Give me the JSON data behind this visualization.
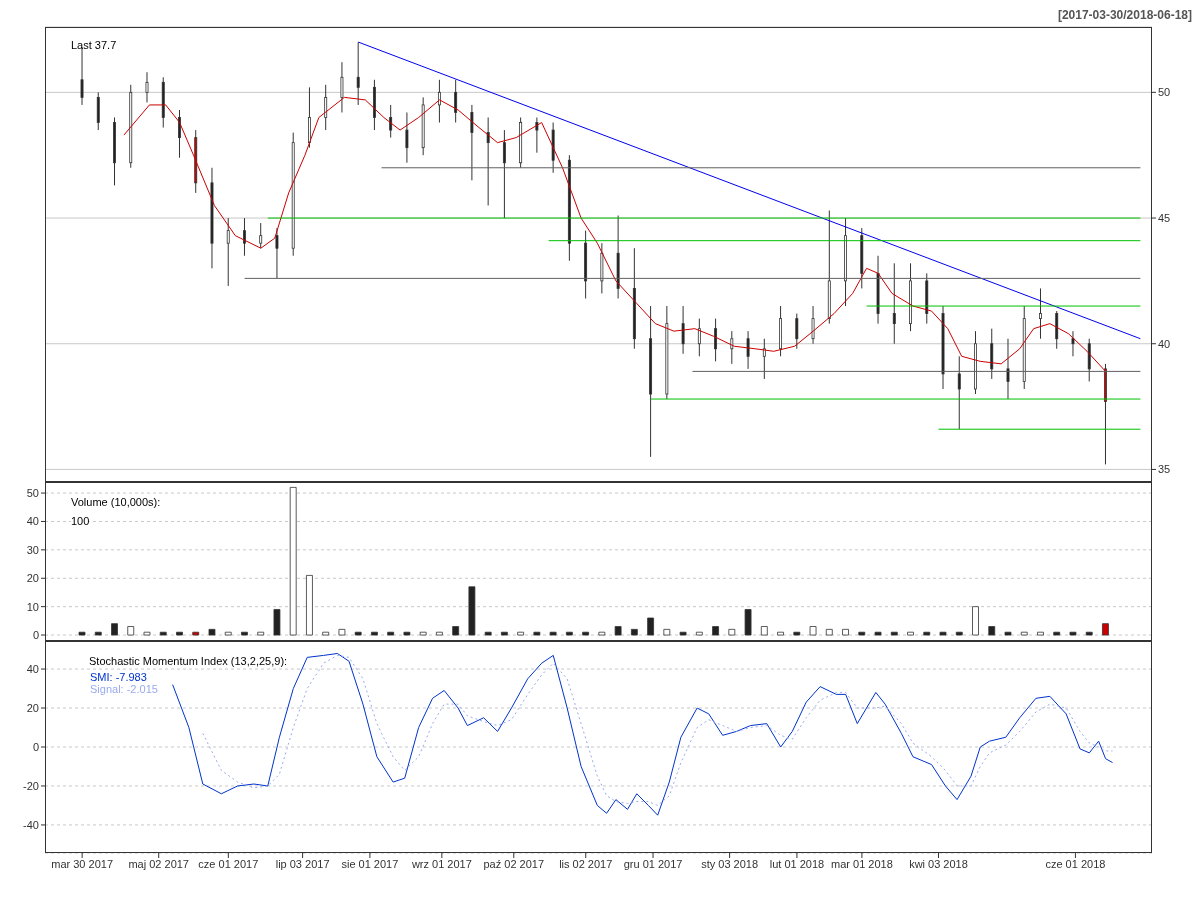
{
  "chart_data": [
    {
      "type": "candlestick",
      "annotations": [
        "Last 37.7",
        "[2017-03-30/2018-06-18]"
      ],
      "x": [
        "2017-03-30",
        "2017-04-06",
        "2017-04-13",
        "2017-04-20",
        "2017-04-27",
        "2017-05-04",
        "2017-05-11",
        "2017-05-18",
        "2017-05-25",
        "2017-06-01",
        "2017-06-08",
        "2017-06-15",
        "2017-06-22",
        "2017-06-29",
        "2017-07-06",
        "2017-07-13",
        "2017-07-20",
        "2017-07-27",
        "2017-08-03",
        "2017-08-10",
        "2017-08-17",
        "2017-08-24",
        "2017-08-31",
        "2017-09-07",
        "2017-09-14",
        "2017-09-21",
        "2017-09-28",
        "2017-10-05",
        "2017-10-12",
        "2017-10-19",
        "2017-10-26",
        "2017-11-02",
        "2017-11-09",
        "2017-11-16",
        "2017-11-23",
        "2017-11-30",
        "2017-12-07",
        "2017-12-14",
        "2017-12-21",
        "2017-12-28",
        "2018-01-04",
        "2018-01-11",
        "2018-01-18",
        "2018-01-25",
        "2018-02-01",
        "2018-02-08",
        "2018-02-15",
        "2018-02-22",
        "2018-03-01",
        "2018-03-08",
        "2018-03-15",
        "2018-03-22",
        "2018-03-29",
        "2018-04-05",
        "2018-04-12",
        "2018-04-19",
        "2018-04-26",
        "2018-05-03",
        "2018-05-10",
        "2018-05-17",
        "2018-05-24",
        "2018-05-31",
        "2018-06-07",
        "2018-06-14"
      ],
      "ohlc": [
        [
          50.5,
          51.8,
          49.5,
          49.8
        ],
        [
          49.8,
          50,
          48.5,
          48.8
        ],
        [
          48.8,
          49,
          46.3,
          47.2
        ],
        [
          47.2,
          50.3,
          47,
          50
        ],
        [
          50,
          50.8,
          49.6,
          50.4
        ],
        [
          50.4,
          50.6,
          48.6,
          49
        ],
        [
          49,
          49.3,
          47.4,
          48.2
        ],
        [
          48.2,
          48.5,
          46,
          46.4
        ],
        [
          46.4,
          47,
          43,
          44
        ],
        [
          44,
          45,
          42.3,
          44.5
        ],
        [
          44.5,
          45,
          43.5,
          44
        ],
        [
          44,
          44.8,
          43.8,
          44.3
        ],
        [
          44.3,
          44.6,
          42.6,
          43.8
        ],
        [
          43.8,
          48.4,
          43.5,
          48
        ],
        [
          48,
          50.2,
          47.8,
          49
        ],
        [
          49,
          50.3,
          48.5,
          49.8
        ],
        [
          49.8,
          51.2,
          49.2,
          50.6
        ],
        [
          50.6,
          52,
          49.5,
          50.2
        ],
        [
          50.2,
          50.5,
          48.5,
          49
        ],
        [
          49,
          49.5,
          48.2,
          48.5
        ],
        [
          48.5,
          49.2,
          47.2,
          47.8
        ],
        [
          47.8,
          49.8,
          47.5,
          49.5
        ],
        [
          49.5,
          50.5,
          48.8,
          50
        ],
        [
          50,
          50.5,
          48.8,
          49.2
        ],
        [
          49.2,
          49.5,
          46.5,
          48.4
        ],
        [
          48.4,
          49,
          45.5,
          48
        ],
        [
          48,
          48.5,
          45,
          47.2
        ],
        [
          47.2,
          49,
          47,
          48.8
        ],
        [
          48.8,
          49,
          47.6,
          48.5
        ],
        [
          48.5,
          48.8,
          46.8,
          47.3
        ],
        [
          47.3,
          47.5,
          43.3,
          44
        ],
        [
          44,
          44.5,
          41.8,
          42.5
        ],
        [
          42.5,
          44,
          42,
          43.6
        ],
        [
          43.6,
          45.1,
          41.8,
          42.2
        ],
        [
          42.2,
          43.8,
          39.8,
          40.2
        ],
        [
          40.2,
          41.5,
          35.5,
          38
        ],
        [
          38,
          41.5,
          37.8,
          40.8
        ],
        [
          40.8,
          41.5,
          39.6,
          40
        ],
        [
          40,
          41,
          39.5,
          40.6
        ],
        [
          40.6,
          41,
          39.3,
          39.8
        ],
        [
          39.8,
          40.5,
          39.2,
          40.2
        ],
        [
          40.2,
          40.5,
          39,
          39.5
        ],
        [
          39.5,
          40.2,
          38.6,
          39.8
        ],
        [
          39.8,
          41.5,
          39.5,
          41
        ],
        [
          41,
          41.2,
          39.8,
          40.2
        ],
        [
          40.2,
          41.5,
          40,
          41
        ],
        [
          41,
          45.3,
          40.8,
          42.5
        ],
        [
          42.5,
          45,
          41.5,
          44.3
        ],
        [
          44.3,
          44.6,
          42.2,
          42.8
        ],
        [
          42.8,
          43.5,
          40.8,
          41.2
        ],
        [
          41.2,
          43.2,
          40,
          40.8
        ],
        [
          40.8,
          43.2,
          40.5,
          42.5
        ],
        [
          42.5,
          42.8,
          40.8,
          41.2
        ],
        [
          41.2,
          41.5,
          38.2,
          38.8
        ],
        [
          38.8,
          39.5,
          36.6,
          38.2
        ],
        [
          38.2,
          40.5,
          38,
          40
        ],
        [
          40,
          40.6,
          38.6,
          39
        ],
        [
          39,
          40.2,
          37.8,
          38.5
        ],
        [
          38.5,
          41.5,
          38.2,
          41
        ],
        [
          41,
          42.2,
          40.2,
          41.2
        ],
        [
          41.2,
          41.3,
          39.8,
          40.2
        ],
        [
          40.2,
          40.5,
          39.5,
          40
        ],
        [
          40,
          40.2,
          38.5,
          39
        ],
        [
          39,
          39.2,
          35.2,
          37.7
        ]
      ],
      "colors": [
        "#222222",
        "#222222",
        "#222222",
        "#ffffff",
        "#ffffff",
        "#222222",
        "#222222",
        "#cc0000",
        "#222222",
        "#ffffff",
        "#222222",
        "#ffffff",
        "#222222",
        "#ffffff",
        "#ffffff",
        "#ffffff",
        "#ffffff",
        "#222222",
        "#222222",
        "#222222",
        "#222222",
        "#ffffff",
        "#ffffff",
        "#222222",
        "#222222",
        "#222222",
        "#222222",
        "#ffffff",
        "#222222",
        "#222222",
        "#222222",
        "#222222",
        "#ffffff",
        "#222222",
        "#222222",
        "#222222",
        "#ffffff",
        "#222222",
        "#ffffff",
        "#222222",
        "#ffffff",
        "#222222",
        "#ffffff",
        "#ffffff",
        "#222222",
        "#ffffff",
        "#ffffff",
        "#ffffff",
        "#222222",
        "#222222",
        "#222222",
        "#ffffff",
        "#222222",
        "#222222",
        "#222222",
        "#ffffff",
        "#222222",
        "#222222",
        "#ffffff",
        "#ffffff",
        "#222222",
        "#222222",
        "#222222",
        "#cc0000"
      ],
      "series": [
        {
          "type": "line",
          "color": "#cc0000",
          "x": [
            "2017-04-17",
            "2017-04-28",
            "2017-05-05",
            "2017-05-11",
            "2017-05-17",
            "2017-05-26",
            "2017-06-04",
            "2017-06-15",
            "2017-06-21",
            "2017-06-27",
            "2017-07-04",
            "2017-07-10",
            "2017-07-21",
            "2017-07-30",
            "2017-08-07",
            "2017-08-14",
            "2017-08-22",
            "2017-08-31",
            "2017-09-08",
            "2017-09-17",
            "2017-09-25",
            "2017-10-03",
            "2017-10-14",
            "2017-10-23",
            "2017-10-31",
            "2017-11-07",
            "2017-11-15",
            "2017-11-24",
            "2017-12-02",
            "2017-12-10",
            "2017-12-19",
            "2017-12-27",
            "2018-01-05",
            "2018-01-14",
            "2018-01-22",
            "2018-01-31",
            "2018-02-08",
            "2018-02-17",
            "2018-02-25",
            "2018-03-03",
            "2018-03-08",
            "2018-03-14",
            "2018-03-23",
            "2018-03-31",
            "2018-04-07",
            "2018-04-13",
            "2018-04-21",
            "2018-04-30",
            "2018-05-08",
            "2018-05-14",
            "2018-05-21",
            "2018-05-29",
            "2018-06-06",
            "2018-06-14"
          ],
          "values": [
            48.3,
            49.5,
            49.5,
            48.8,
            47.5,
            45.5,
            44.3,
            43.8,
            44.2,
            46,
            47.5,
            49,
            49.8,
            49.7,
            49,
            48.5,
            49,
            49.7,
            49.3,
            48.6,
            48,
            48.2,
            48.8,
            47,
            45,
            44,
            42.5,
            41.6,
            40.8,
            40.5,
            40.6,
            40.3,
            39.9,
            39.8,
            39.7,
            39.9,
            40.5,
            41.2,
            42,
            43,
            42.8,
            42,
            41.5,
            41.3,
            40.6,
            39.5,
            39.3,
            39.2,
            39.8,
            40.6,
            40.8,
            40.4,
            39.7,
            38.9
          ]
        },
        {
          "type": "line",
          "color": "#0000ee",
          "x": [
            "2017-07-27",
            "2018-06-29"
          ],
          "values": [
            52,
            40.2
          ]
        },
        {
          "type": "line",
          "color": "#606060",
          "x": [
            "2017-08-06",
            "2018-06-29"
          ],
          "values": [
            47,
            47
          ]
        },
        {
          "type": "line",
          "color": "#00c000",
          "x": [
            "2017-06-18",
            "2018-06-29"
          ],
          "values": [
            45,
            45
          ]
        },
        {
          "type": "line",
          "color": "#00c000",
          "x": [
            "2017-10-17",
            "2018-06-29"
          ],
          "values": [
            44.1,
            44.1
          ]
        },
        {
          "type": "line",
          "color": "#606060",
          "x": [
            "2017-06-08",
            "2018-06-29"
          ],
          "values": [
            42.6,
            42.6
          ]
        },
        {
          "type": "line",
          "color": "#00c000",
          "x": [
            "2018-03-03",
            "2018-06-29"
          ],
          "values": [
            41.5,
            41.5
          ]
        },
        {
          "type": "line",
          "color": "#606060",
          "x": [
            "2017-12-18",
            "2018-06-29"
          ],
          "values": [
            38.9,
            38.9
          ]
        },
        {
          "type": "line",
          "color": "#00c000",
          "x": [
            "2017-11-30",
            "2018-06-29"
          ],
          "values": [
            37.8,
            37.8
          ]
        },
        {
          "type": "line",
          "color": "#00c000",
          "x": [
            "2018-04-03",
            "2018-06-29"
          ],
          "values": [
            36.6,
            36.6
          ]
        }
      ],
      "xlim": [
        "2017-03-14",
        "2018-07-04"
      ],
      "ylim": [
        34.5,
        52.6
      ],
      "yticks": [
        35,
        40,
        45,
        50
      ],
      "grid": "y",
      "tick_labels": "y"
    },
    {
      "type": "bar",
      "annotations": [
        "Volume (10,000s):",
        "100"
      ],
      "x": [
        "2017-03-30",
        "2017-04-06",
        "2017-04-13",
        "2017-04-20",
        "2017-04-27",
        "2017-05-04",
        "2017-05-11",
        "2017-05-18",
        "2017-05-25",
        "2017-06-01",
        "2017-06-08",
        "2017-06-15",
        "2017-06-22",
        "2017-06-29",
        "2017-07-06",
        "2017-07-13",
        "2017-07-20",
        "2017-07-27",
        "2017-08-03",
        "2017-08-10",
        "2017-08-17",
        "2017-08-24",
        "2017-08-31",
        "2017-09-07",
        "2017-09-14",
        "2017-09-21",
        "2017-09-28",
        "2017-10-05",
        "2017-10-12",
        "2017-10-19",
        "2017-10-26",
        "2017-11-02",
        "2017-11-09",
        "2017-11-16",
        "2017-11-23",
        "2017-11-30",
        "2017-12-07",
        "2017-12-14",
        "2017-12-21",
        "2017-12-28",
        "2018-01-04",
        "2018-01-11",
        "2018-01-18",
        "2018-01-25",
        "2018-02-01",
        "2018-02-08",
        "2018-02-15",
        "2018-02-22",
        "2018-03-01",
        "2018-03-08",
        "2018-03-15",
        "2018-03-22",
        "2018-03-29",
        "2018-04-05",
        "2018-04-12",
        "2018-04-19",
        "2018-04-26",
        "2018-05-03",
        "2018-05-10",
        "2018-05-17",
        "2018-05-24",
        "2018-05-31",
        "2018-06-07",
        "2018-06-14"
      ],
      "values": [
        1,
        1,
        4,
        3,
        1,
        1,
        1,
        1,
        2,
        1,
        1,
        1,
        9,
        52,
        21,
        1,
        2,
        1,
        1,
        1,
        1,
        1,
        1,
        3,
        17,
        1,
        1,
        1,
        1,
        1,
        1,
        1,
        1,
        3,
        2,
        6,
        2,
        1,
        1,
        3,
        2,
        9,
        3,
        1,
        1,
        3,
        2,
        2,
        1,
        1,
        1,
        1,
        1,
        1,
        1,
        10,
        3,
        1,
        1,
        1,
        1,
        1,
        1,
        4
      ],
      "colors": [
        "#222222",
        "#222222",
        "#222222",
        "#ffffff",
        "#ffffff",
        "#222222",
        "#222222",
        "#cc0000",
        "#222222",
        "#ffffff",
        "#222222",
        "#ffffff",
        "#222222",
        "#ffffff",
        "#ffffff",
        "#ffffff",
        "#ffffff",
        "#222222",
        "#222222",
        "#222222",
        "#222222",
        "#ffffff",
        "#ffffff",
        "#222222",
        "#222222",
        "#222222",
        "#222222",
        "#ffffff",
        "#222222",
        "#222222",
        "#222222",
        "#222222",
        "#ffffff",
        "#222222",
        "#222222",
        "#222222",
        "#ffffff",
        "#222222",
        "#ffffff",
        "#222222",
        "#ffffff",
        "#222222",
        "#ffffff",
        "#ffffff",
        "#222222",
        "#ffffff",
        "#ffffff",
        "#ffffff",
        "#222222",
        "#222222",
        "#222222",
        "#ffffff",
        "#222222",
        "#222222",
        "#222222",
        "#ffffff",
        "#222222",
        "#222222",
        "#ffffff",
        "#ffffff",
        "#222222",
        "#222222",
        "#222222",
        "#cc0000"
      ],
      "xlim": [
        "2017-03-14",
        "2018-07-04"
      ],
      "ylim": [
        -2.1,
        53.9
      ],
      "yticks": [
        0,
        10,
        20,
        30,
        40,
        50
      ],
      "grid": "y",
      "tick_labels": "y"
    },
    {
      "type": "line",
      "annotations": [
        "Stochastic Momentum Index (13,2,25,9):"
      ],
      "legend": "top left",
      "xlim": [
        "2017-03-14",
        "2018-07-04"
      ],
      "ylim": [
        -54.4,
        54.4
      ],
      "yticks": [
        -40,
        -20,
        0,
        20,
        40
      ],
      "grid": "y",
      "xticks": [
        {
          "value": "2017-03-30",
          "label": "mar 30 2017"
        },
        {
          "value": "2017-05-02",
          "label": "maj 02 2017"
        },
        {
          "value": "2017-06-01",
          "label": "cze 01 2017"
        },
        {
          "value": "2017-07-03",
          "label": "lip 03 2017"
        },
        {
          "value": "2017-08-01",
          "label": "sie 01 2017"
        },
        {
          "value": "2017-09-01",
          "label": "wrz 01 2017"
        },
        {
          "value": "2017-10-02",
          "label": "paź 02 2017"
        },
        {
          "value": "2017-11-02",
          "label": "lis 02 2017"
        },
        {
          "value": "2017-12-01",
          "label": "gru 01 2017"
        },
        {
          "value": "2018-01-03",
          "label": "sty 03 2018"
        },
        {
          "value": "2018-02-01",
          "label": "lut 01 2018"
        },
        {
          "value": "2018-03-01",
          "label": "mar 01 2018"
        },
        {
          "value": "2018-04-03",
          "label": "kwi 03 2018"
        },
        {
          "value": "2018-06-01",
          "label": "cze 01 2018"
        }
      ],
      "series": [
        {
          "name": "SMI: -7.983",
          "color": "#0033cc",
          "line_style": "solid",
          "x": [
            "2017-05-08",
            "2017-05-15",
            "2017-05-21",
            "2017-05-29",
            "2017-06-05",
            "2017-06-12",
            "2017-06-18",
            "2017-06-23",
            "2017-06-29",
            "2017-07-05",
            "2017-07-12",
            "2017-07-18",
            "2017-07-23",
            "2017-07-29",
            "2017-08-04",
            "2017-08-11",
            "2017-08-16",
            "2017-08-22",
            "2017-08-28",
            "2017-09-02",
            "2017-09-08",
            "2017-09-12",
            "2017-09-19",
            "2017-09-25",
            "2017-10-01",
            "2017-10-08",
            "2017-10-14",
            "2017-10-19",
            "2017-10-25",
            "2017-10-31",
            "2017-11-07",
            "2017-11-11",
            "2017-11-15",
            "2017-11-20",
            "2017-11-24",
            "2017-11-29",
            "2017-12-03",
            "2017-12-08",
            "2017-12-13",
            "2017-12-20",
            "2017-12-25",
            "2017-12-31",
            "2018-01-06",
            "2018-01-12",
            "2018-01-19",
            "2018-01-25",
            "2018-01-30",
            "2018-02-05",
            "2018-02-11",
            "2018-02-18",
            "2018-02-22",
            "2018-02-27",
            "2018-03-07",
            "2018-03-11",
            "2018-03-18",
            "2018-03-23",
            "2018-03-31",
            "2018-04-06",
            "2018-04-11",
            "2018-04-17",
            "2018-04-21",
            "2018-04-25",
            "2018-05-02",
            "2018-05-08",
            "2018-05-15",
            "2018-05-21",
            "2018-05-28",
            "2018-06-03",
            "2018-06-07",
            "2018-06-11",
            "2018-06-14",
            "2018-06-17"
          ],
          "values": [
            32,
            10,
            -19,
            -24,
            -20,
            -19,
            -20,
            5,
            30,
            46,
            47,
            48,
            44,
            22,
            -5,
            -18,
            -16,
            10,
            25,
            29,
            20,
            11,
            15,
            8,
            20,
            35,
            43,
            47,
            20,
            -10,
            -30,
            -34,
            -27,
            -32,
            -24,
            -30,
            -35,
            -18,
            5,
            20,
            17,
            6,
            8,
            11,
            12,
            0,
            8,
            23,
            31,
            27,
            27,
            12,
            28,
            22,
            7,
            -5,
            -9,
            -20,
            -27,
            -15,
            0,
            3,
            5,
            15,
            25,
            26,
            17,
            -1,
            -3,
            3,
            -6,
            -8
          ]
        },
        {
          "name": "Signal: -2.015",
          "color": "#99aaee",
          "line_style": "dotted",
          "x": [
            "2017-05-21",
            "2017-05-29",
            "2017-06-05",
            "2017-06-12",
            "2017-06-18",
            "2017-06-23",
            "2017-06-29",
            "2017-07-05",
            "2017-07-12",
            "2017-07-18",
            "2017-07-23",
            "2017-07-29",
            "2017-08-04",
            "2017-08-11",
            "2017-08-16",
            "2017-08-22",
            "2017-08-28",
            "2017-09-02",
            "2017-09-08",
            "2017-09-12",
            "2017-09-19",
            "2017-09-25",
            "2017-10-01",
            "2017-10-08",
            "2017-10-14",
            "2017-10-19",
            "2017-10-25",
            "2017-10-31",
            "2017-11-07",
            "2017-11-11",
            "2017-11-15",
            "2017-11-20",
            "2017-11-24",
            "2017-11-29",
            "2017-12-03",
            "2017-12-08",
            "2017-12-13",
            "2017-12-20",
            "2017-12-25",
            "2017-12-31",
            "2018-01-06",
            "2018-01-12",
            "2018-01-19",
            "2018-01-25",
            "2018-01-30",
            "2018-02-05",
            "2018-02-11",
            "2018-02-18",
            "2018-02-22",
            "2018-02-27",
            "2018-03-07",
            "2018-03-11",
            "2018-03-18",
            "2018-03-23",
            "2018-03-31",
            "2018-04-06",
            "2018-04-11",
            "2018-04-17",
            "2018-04-21",
            "2018-04-25",
            "2018-05-02",
            "2018-05-08",
            "2018-05-15",
            "2018-05-21",
            "2018-05-28",
            "2018-06-03",
            "2018-06-07",
            "2018-06-11",
            "2018-06-14",
            "2018-06-17"
          ],
          "values": [
            7,
            -12,
            -18,
            -21,
            -20,
            -14,
            10,
            30,
            43,
            47,
            46,
            35,
            12,
            -5,
            -12,
            -5,
            12,
            22,
            22,
            16,
            13,
            11,
            14,
            27,
            37,
            43,
            35,
            12,
            -15,
            -25,
            -28,
            -29,
            -28,
            -28,
            -30,
            -25,
            -8,
            10,
            14,
            11,
            8,
            10,
            11,
            6,
            4,
            15,
            24,
            28,
            28,
            20,
            20,
            21,
            12,
            2,
            -5,
            -12,
            -20,
            -20,
            -10,
            -3,
            1,
            8,
            18,
            22,
            20,
            8,
            2,
            0,
            -2,
            -2
          ]
        }
      ]
    }
  ]
}
